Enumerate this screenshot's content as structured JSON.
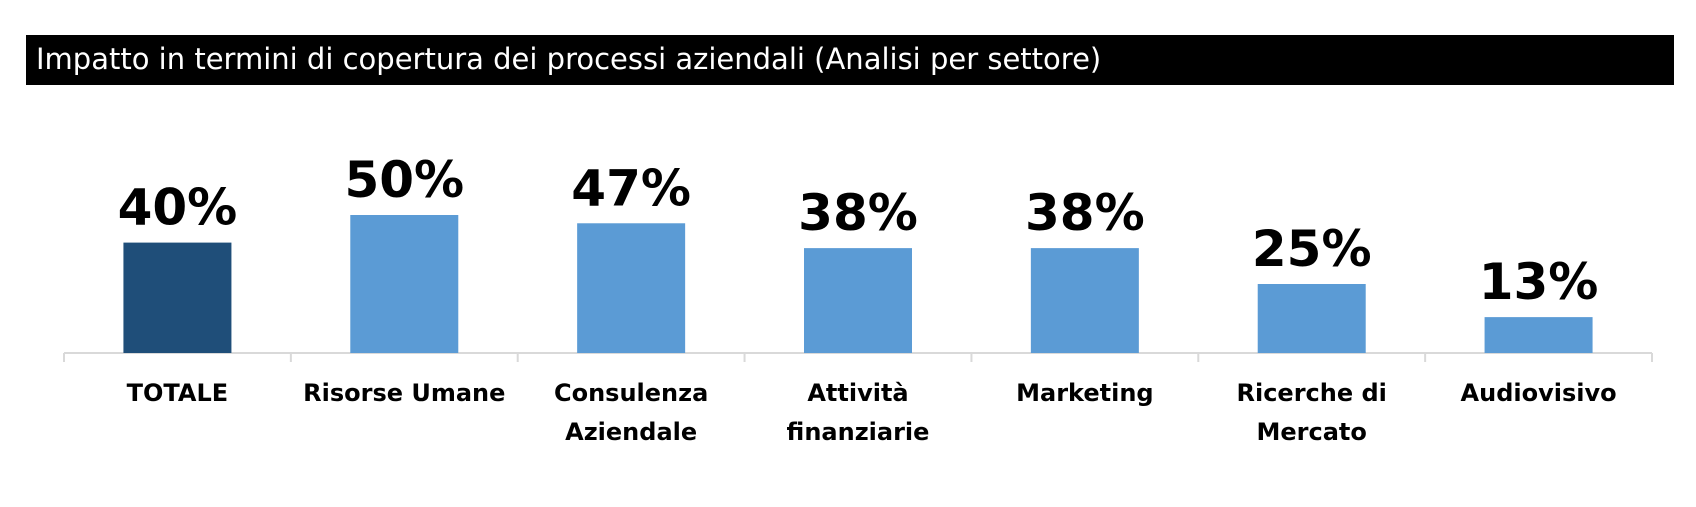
{
  "title": "Impatto in termini di copertura dei processi aziendali (Analisi per settore)",
  "colors": {
    "highlight": "#1F4E79",
    "bar": "#5B9BD5",
    "axis": "#D9D9D9"
  },
  "chart_data": {
    "type": "bar",
    "title": "Impatto in termini di copertura dei processi aziendali (Analisi per settore)",
    "categories": [
      [
        "TOTALE"
      ],
      [
        "Risorse Umane"
      ],
      [
        "Consulenza",
        "Aziendale"
      ],
      [
        "Attività",
        "finanziarie"
      ],
      [
        "Marketing"
      ],
      [
        "Ricerche di",
        "Mercato"
      ],
      [
        "Audiovisivo"
      ]
    ],
    "values": [
      40,
      50,
      47,
      38,
      38,
      25,
      13
    ],
    "value_labels": [
      "40%",
      "50%",
      "47%",
      "38%",
      "38%",
      "25%",
      "13%"
    ],
    "highlight_index": 0,
    "unit": "%",
    "xlabel": "",
    "ylabel": "",
    "grid": false,
    "y_axis_visible": false,
    "legend": "none"
  }
}
